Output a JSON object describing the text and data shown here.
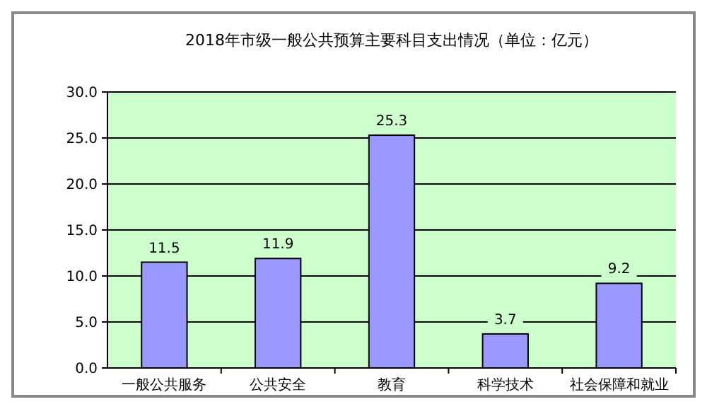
{
  "chart_data": {
    "type": "bar",
    "title": "2018年市级一般公共预算主要科目支出情况（单位：亿元）",
    "categories": [
      "一般公共服务",
      "公共安全",
      "教育",
      "科学技术",
      "社会保障和就业"
    ],
    "values": [
      11.5,
      11.9,
      25.3,
      3.7,
      9.2
    ],
    "color": "#9999ff",
    "ylim": [
      0,
      30
    ],
    "yticks": [
      {
        "value": 0,
        "label": "0.0"
      },
      {
        "value": 5,
        "label": "5.0"
      },
      {
        "value": 10,
        "label": "10.0"
      },
      {
        "value": 15,
        "label": "15.0"
      },
      {
        "value": 20,
        "label": "20.0"
      },
      {
        "value": 25,
        "label": "25.0"
      },
      {
        "value": 30,
        "label": "30.0"
      }
    ],
    "grid": "y",
    "data_labels": true
  }
}
